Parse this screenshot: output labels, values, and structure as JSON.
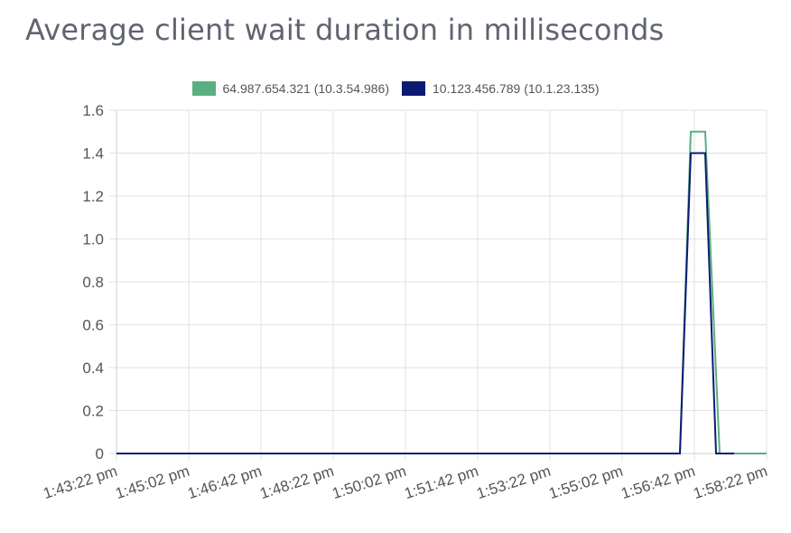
{
  "title": "Average client wait duration in milliseconds",
  "colors": {
    "series_1": "#5aaf82",
    "series_2": "#0b1b74",
    "grid": "#e1e1e1",
    "text": "#555555"
  },
  "chart_data": {
    "type": "line",
    "title": "Average client wait duration in milliseconds",
    "xlabel": "",
    "ylabel": "",
    "ylim": [
      0,
      1.6
    ],
    "yticks": [
      "0",
      "0.2",
      "0.4",
      "0.6",
      "0.8",
      "1.0",
      "1.2",
      "1.4",
      "1.6"
    ],
    "x_range": [
      "1:43:22 pm",
      "1:58:22 pm"
    ],
    "x_ticks": [
      "1:43:22 pm",
      "1:45:02 pm",
      "1:46:42 pm",
      "1:48:22 pm",
      "1:50:02 pm",
      "1:51:42 pm",
      "1:53:22 pm",
      "1:55:02 pm",
      "1:56:42 pm",
      "1:58:22 pm"
    ],
    "grid": true,
    "legend_position": "top-center",
    "series": [
      {
        "name": "64.987.654.321 (10.3.54.986)",
        "color": "#5aaf82",
        "points": [
          [
            "1:43:22 pm",
            0
          ],
          [
            "1:56:22 pm",
            0
          ],
          [
            "1:56:37 pm",
            1.5
          ],
          [
            "1:56:57 pm",
            1.5
          ],
          [
            "1:57:17 pm",
            0
          ],
          [
            "1:58:22 pm",
            0
          ]
        ]
      },
      {
        "name": "10.123.456.789 (10.1.23.135)",
        "color": "#0b1b74",
        "points": [
          [
            "1:43:22 pm",
            0
          ],
          [
            "1:43:37 pm",
            0
          ],
          [
            "1:56:22 pm",
            0
          ],
          [
            "1:56:37 pm",
            1.4
          ],
          [
            "1:56:57 pm",
            1.4
          ],
          [
            "1:57:12 pm",
            0
          ],
          [
            "1:57:37 pm",
            0
          ]
        ]
      }
    ]
  }
}
